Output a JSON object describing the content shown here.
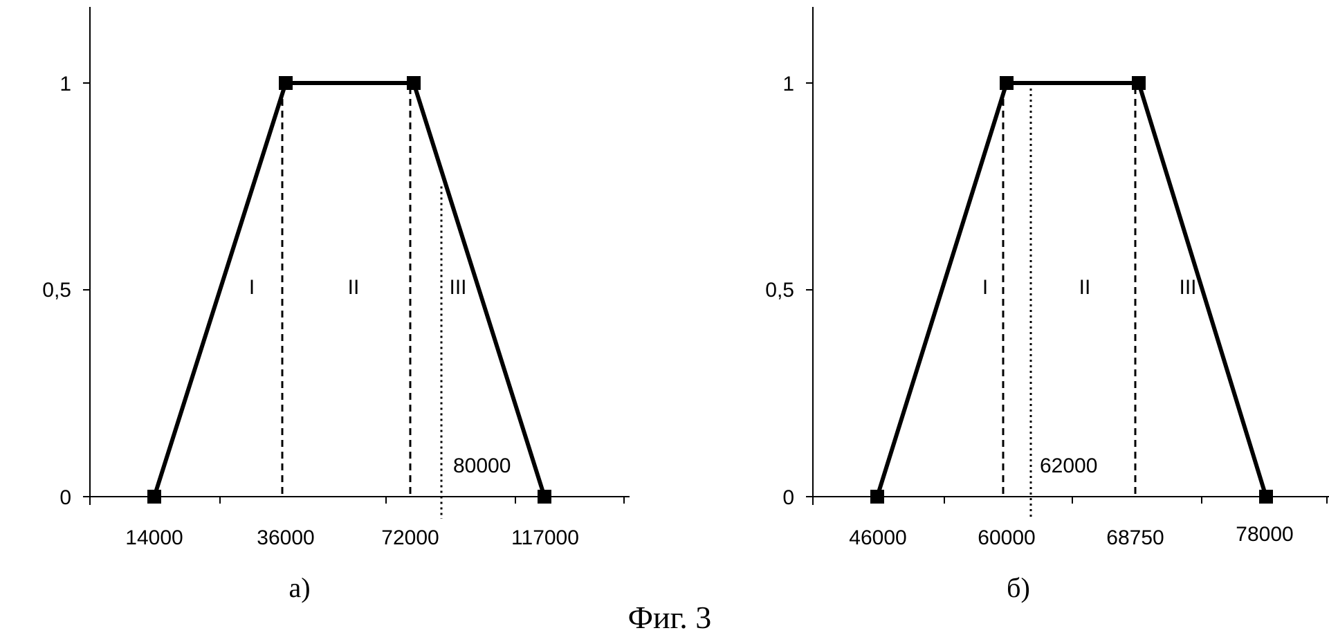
{
  "figure_caption": "Фиг. 3",
  "chart_data": [
    {
      "type": "line",
      "panel_label": "а)",
      "x_tick_labels": [
        "14000",
        "36000",
        "72000",
        "117000"
      ],
      "y_tick_labels": [
        "0",
        "0,5",
        "1"
      ],
      "ylim": [
        0,
        1.2
      ],
      "series": [
        {
          "x": [
            14000,
            36000,
            72000,
            117000
          ],
          "y": [
            0,
            1,
            1,
            0
          ]
        }
      ],
      "dashed_lines": [
        36000,
        72000
      ],
      "dotted_line": {
        "x": 80000,
        "label": "80000",
        "y_top": 0.75
      },
      "regions": [
        "I",
        "II",
        "III"
      ],
      "grid": false
    },
    {
      "type": "line",
      "panel_label": "б)",
      "x_tick_labels": [
        "46000",
        "60000",
        "68750",
        "78000"
      ],
      "y_tick_labels": [
        "0",
        "0,5",
        "1"
      ],
      "ylim": [
        0,
        1.2
      ],
      "series": [
        {
          "x": [
            46000,
            60000,
            68750,
            78000
          ],
          "y": [
            0,
            1,
            1,
            0
          ]
        }
      ],
      "dashed_lines": [
        60000,
        68750
      ],
      "dotted_line": {
        "x": 62000,
        "label": "62000",
        "y_top": 1.0
      },
      "regions": [
        "I",
        "II",
        "III"
      ],
      "grid": false
    }
  ]
}
